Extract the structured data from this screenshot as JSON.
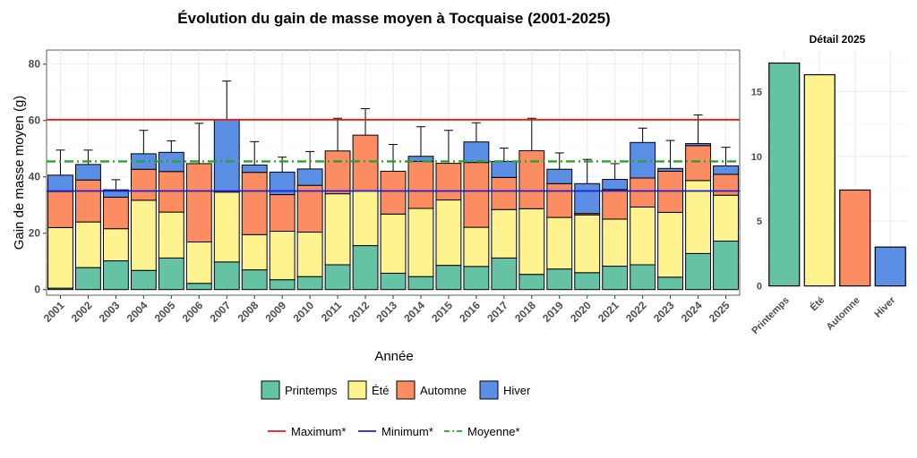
{
  "chart_data": [
    {
      "type": "bar",
      "stacked": true,
      "title": "Évolution du gain de masse moyen à Tocquaise (2001-2025)",
      "xlabel": "Année",
      "ylabel": "Gain de masse moyen (g)",
      "ylim": [
        -2,
        85
      ],
      "yticks": [
        0,
        20,
        40,
        60,
        80
      ],
      "categories": [
        "2001",
        "2002",
        "2003",
        "2004",
        "2005",
        "2006",
        "2007",
        "2008",
        "2009",
        "2010",
        "2011",
        "2012",
        "2013",
        "2014",
        "2015",
        "2016",
        "2017",
        "2018",
        "2019",
        "2020",
        "2021",
        "2022",
        "2023",
        "2024",
        "2025"
      ],
      "series": [
        {
          "name": "Printemps",
          "color": "#66c2a5",
          "values": [
            0.5,
            7.8,
            10.2,
            6.8,
            11.2,
            2.2,
            9.8,
            7.0,
            3.5,
            4.6,
            8.8,
            15.6,
            5.8,
            4.6,
            8.6,
            8.2,
            11.2,
            5.4,
            7.3,
            6.0,
            8.3,
            8.8,
            4.4,
            12.8,
            17.2
          ]
        },
        {
          "name": "Été",
          "color": "#fff38f",
          "values": [
            21.5,
            16.2,
            11.4,
            24.9,
            16.3,
            14.7,
            24.8,
            12.5,
            17.2,
            15.8,
            25.2,
            19.4,
            21.0,
            24.2,
            23.2,
            13.9,
            17.2,
            23.3,
            18.3,
            20.5,
            16.7,
            20.5,
            23.0,
            25.9,
            16.3
          ]
        },
        {
          "name": "Automne",
          "color": "#fc8d62",
          "values": [
            12.8,
            14.9,
            11.2,
            11.0,
            14.4,
            27.8,
            0.4,
            22.1,
            13.0,
            16.6,
            15.2,
            19.8,
            15.2,
            16.7,
            13.0,
            23.0,
            11.4,
            20.6,
            12.0,
            0.5,
            10.5,
            10.3,
            14.6,
            12.4,
            7.4
          ]
        },
        {
          "name": "Hiver",
          "color": "#5b8fe6",
          "values": [
            5.8,
            5.5,
            2.6,
            5.5,
            6.8,
            0.0,
            25.3,
            2.6,
            8.0,
            5.8,
            0.0,
            0.0,
            0.0,
            1.8,
            0.0,
            7.3,
            5.7,
            0.0,
            5.1,
            10.6,
            3.6,
            12.6,
            1.0,
            0.7,
            3.0
          ]
        }
      ],
      "error_upper": [
        49.5,
        49.5,
        39.0,
        56.5,
        52.8,
        59.0,
        74.0,
        52.5,
        47.0,
        49.0,
        60.8,
        64.2,
        51.5,
        57.8,
        56.5,
        59.2,
        50.2,
        60.8,
        48.5,
        46.2,
        44.7,
        57.3,
        52.9,
        62.0,
        50.5
      ],
      "reference_lines": [
        {
          "name": "Maximum*",
          "value": 60.3,
          "color": "#e41a1c",
          "style": "solid"
        },
        {
          "name": "Minimum*",
          "value": 35.0,
          "color": "#1f1fcf",
          "style": "solid"
        },
        {
          "name": "Moyenne*",
          "value": 45.5,
          "color": "#2ca02c",
          "style": "dotdash"
        }
      ],
      "grid": true,
      "legend_placement": "bottom"
    },
    {
      "type": "bar",
      "title": "Détail 2025",
      "categories": [
        "Printemps",
        "Été",
        "Automne",
        "Hiver"
      ],
      "values": [
        17.2,
        16.3,
        7.4,
        3.0
      ],
      "colors": [
        "#66c2a5",
        "#fff38f",
        "#fc8d62",
        "#5b8fe6"
      ],
      "ylim": [
        -0.3,
        18.2
      ],
      "yticks": [
        0,
        5,
        10,
        15
      ],
      "grid": true
    }
  ]
}
